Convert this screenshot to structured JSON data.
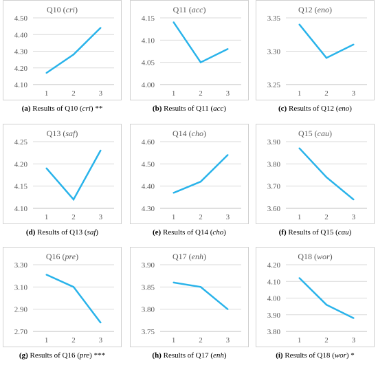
{
  "chart_data": [
    {
      "type": "line",
      "title_prefix": "Q10",
      "title_code": "cri",
      "x": [
        "1",
        "2",
        "3"
      ],
      "values": [
        4.17,
        4.28,
        4.44
      ],
      "yticks": [
        "4.10",
        "4.20",
        "4.30",
        "4.40",
        "4.50"
      ],
      "ylim": [
        4.1,
        4.5
      ],
      "caption": {
        "letter": "(a)",
        "text": "Results of Q10 (",
        "code": "cri",
        "end": ")",
        "stars": " **"
      }
    },
    {
      "type": "line",
      "title_prefix": "Q11",
      "title_code": "acc",
      "x": [
        "1",
        "2",
        "3"
      ],
      "values": [
        4.14,
        4.05,
        4.08
      ],
      "yticks": [
        "4.00",
        "4.05",
        "4.10",
        "4.15"
      ],
      "ylim": [
        4.0,
        4.15
      ],
      "caption": {
        "letter": "(b)",
        "text": "Results of Q11 (",
        "code": "acc",
        "end": ")",
        "stars": ""
      }
    },
    {
      "type": "line",
      "title_prefix": "Q12",
      "title_code": "eno",
      "x": [
        "1",
        "2",
        "3"
      ],
      "values": [
        3.34,
        3.29,
        3.31
      ],
      "yticks": [
        "3.25",
        "3.30",
        "3.35"
      ],
      "ylim": [
        3.25,
        3.35
      ],
      "caption": {
        "letter": "(c)",
        "text": "Results of Q12 (",
        "code": "eno",
        "end": ")",
        "stars": ""
      }
    },
    {
      "type": "line",
      "title_prefix": "Q13",
      "title_code": "saf",
      "x": [
        "1",
        "2",
        "3"
      ],
      "values": [
        4.19,
        4.12,
        4.23
      ],
      "yticks": [
        "4.10",
        "4.15",
        "4.20",
        "4.25"
      ],
      "ylim": [
        4.1,
        4.25
      ],
      "caption": {
        "letter": "(d)",
        "text": "Results of Q13 (",
        "code": "saf",
        "end": ")",
        "stars": ""
      }
    },
    {
      "type": "line",
      "title_prefix": "Q14",
      "title_code": "cho",
      "x": [
        "1",
        "2",
        "3"
      ],
      "values": [
        4.37,
        4.42,
        4.54
      ],
      "yticks": [
        "4.30",
        "4.40",
        "4.50",
        "4.60"
      ],
      "ylim": [
        4.3,
        4.6
      ],
      "caption": {
        "letter": "(e)",
        "text": "Results of Q14 (",
        "code": "cho",
        "end": ")",
        "stars": ""
      }
    },
    {
      "type": "line",
      "title_prefix": "Q15",
      "title_code": "cau",
      "x": [
        "1",
        "2",
        "3"
      ],
      "values": [
        3.87,
        3.74,
        3.64
      ],
      "yticks": [
        "3.60",
        "3.70",
        "3.80",
        "3.90"
      ],
      "ylim": [
        3.6,
        3.9
      ],
      "caption": {
        "letter": "(f)",
        "text": "Results of Q15 (",
        "code": "cau",
        "end": ")",
        "stars": ""
      }
    },
    {
      "type": "line",
      "title_prefix": "Q16",
      "title_code": "pre",
      "x": [
        "1",
        "2",
        "3"
      ],
      "values": [
        3.21,
        3.1,
        2.78
      ],
      "yticks": [
        "2.70",
        "2.90",
        "3.10",
        "3.30"
      ],
      "ylim": [
        2.7,
        3.3
      ],
      "caption": {
        "letter": "(g)",
        "text": "Results of Q16 (",
        "code": "pre",
        "end": ")",
        "stars": " ***"
      }
    },
    {
      "type": "line",
      "title_prefix": "Q17",
      "title_code": "enh",
      "x": [
        "1",
        "2",
        "3"
      ],
      "values": [
        3.86,
        3.85,
        3.8
      ],
      "yticks": [
        "3.75",
        "3.80",
        "3.85",
        "3.90"
      ],
      "ylim": [
        3.75,
        3.9
      ],
      "caption": {
        "letter": "(h)",
        "text": "Results of Q17 (",
        "code": "enh",
        "end": ")",
        "stars": ""
      }
    },
    {
      "type": "line",
      "title_prefix": "Q18",
      "title_code": "wor",
      "x": [
        "1",
        "2",
        "3"
      ],
      "values": [
        4.12,
        3.96,
        3.88
      ],
      "yticks": [
        "3.80",
        "3.90",
        "4.00",
        "4.10",
        "4.20"
      ],
      "ylim": [
        3.8,
        4.2
      ],
      "caption": {
        "letter": "(i)",
        "text": "Results of Q18 (",
        "code": "wor",
        "end": ")",
        "stars": " *"
      }
    }
  ],
  "style": {
    "line_color": "#29b3ea",
    "grid": true
  }
}
